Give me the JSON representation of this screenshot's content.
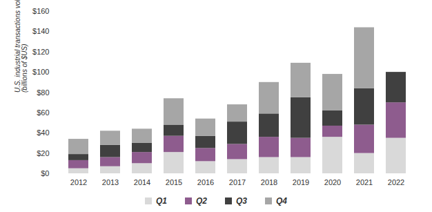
{
  "chart_data": {
    "type": "bar",
    "stacked": true,
    "categories": [
      "2012",
      "2013",
      "2014",
      "2015",
      "2016",
      "2017",
      "2018",
      "2019",
      "2020",
      "2021",
      "2022"
    ],
    "series": [
      {
        "name": "Q1",
        "color": "#d9d9d9",
        "values": [
          5,
          7,
          10,
          21,
          12,
          14,
          16,
          16,
          36,
          20,
          35
        ]
      },
      {
        "name": "Q2",
        "color": "#8e5c8e",
        "values": [
          8,
          9,
          11,
          16,
          13,
          15,
          20,
          19,
          11,
          28,
          35
        ]
      },
      {
        "name": "Q3",
        "color": "#404040",
        "values": [
          6,
          12,
          9,
          11,
          12,
          22,
          23,
          40,
          15,
          36,
          30
        ]
      },
      {
        "name": "Q4",
        "color": "#a6a6a6",
        "values": [
          15,
          14,
          14,
          26,
          17,
          17,
          31,
          34,
          36,
          60,
          null
        ]
      }
    ],
    "y_label": "U.S. industrial transactions volume (billions of $US)",
    "ylim": [
      0,
      160
    ],
    "yticks": [
      {
        "value": 0,
        "label": "$0"
      },
      {
        "value": 20,
        "label": "$20"
      },
      {
        "value": 40,
        "label": "$40"
      },
      {
        "value": 60,
        "label": "$60"
      },
      {
        "value": 80,
        "label": "$80"
      },
      {
        "value": 100,
        "label": "$100"
      },
      {
        "value": 120,
        "label": "$120"
      },
      {
        "value": 140,
        "label": "$140"
      },
      {
        "value": 160,
        "label": "$160"
      }
    ],
    "grid": false,
    "legend": "bottom"
  }
}
